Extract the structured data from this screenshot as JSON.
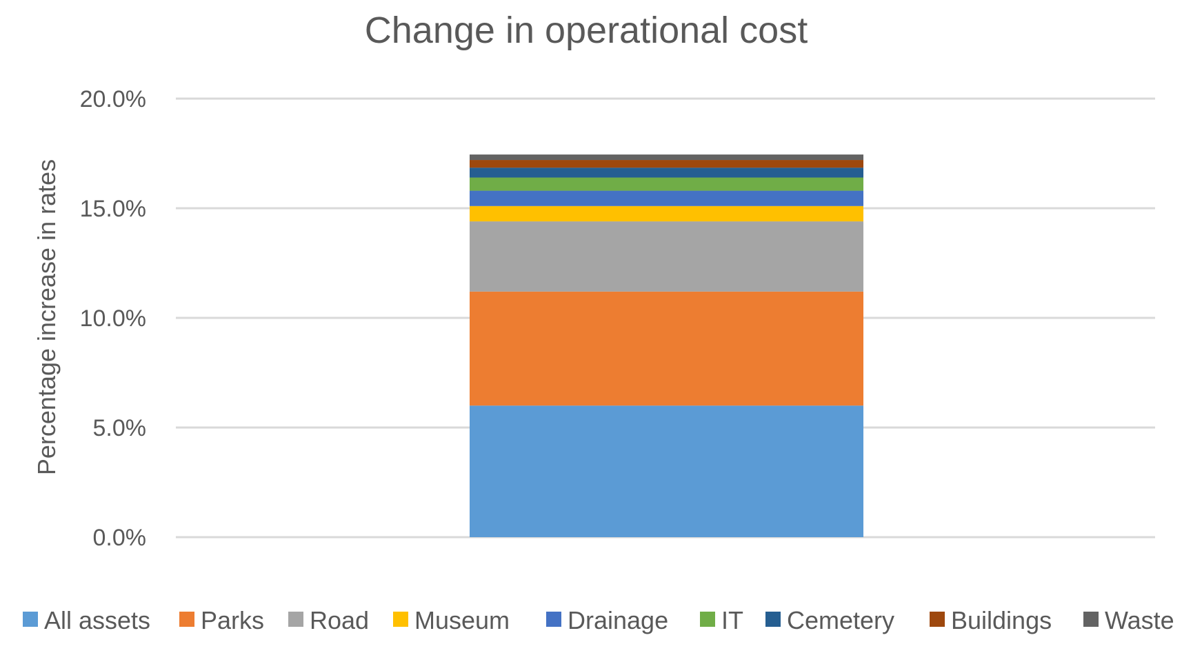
{
  "chart_data": {
    "type": "bar",
    "stacked": true,
    "title": "Change in operational cost",
    "ylabel": "Percentage increase in rates",
    "xlabel": "",
    "ylim": [
      0,
      20
    ],
    "yticks": [
      "0.0%",
      "5.0%",
      "10.0%",
      "15.0%",
      "20.0%"
    ],
    "grid": true,
    "legend_position": "bottom",
    "series": [
      {
        "name": "All assets",
        "value": 6.0,
        "color": "#5b9bd5"
      },
      {
        "name": "Parks",
        "value": 5.2,
        "color": "#ed7d31"
      },
      {
        "name": "Road",
        "value": 3.2,
        "color": "#a5a5a5"
      },
      {
        "name": "Museum",
        "value": 0.7,
        "color": "#ffc000"
      },
      {
        "name": "Drainage",
        "value": 0.7,
        "color": "#4472c4"
      },
      {
        "name": "IT",
        "value": 0.6,
        "color": "#70ad47"
      },
      {
        "name": "Cemetery",
        "value": 0.45,
        "color": "#255e91"
      },
      {
        "name": "Buildings",
        "value": 0.35,
        "color": "#9e480e"
      },
      {
        "name": "Waste",
        "value": 0.25,
        "color": "#636363"
      }
    ]
  }
}
